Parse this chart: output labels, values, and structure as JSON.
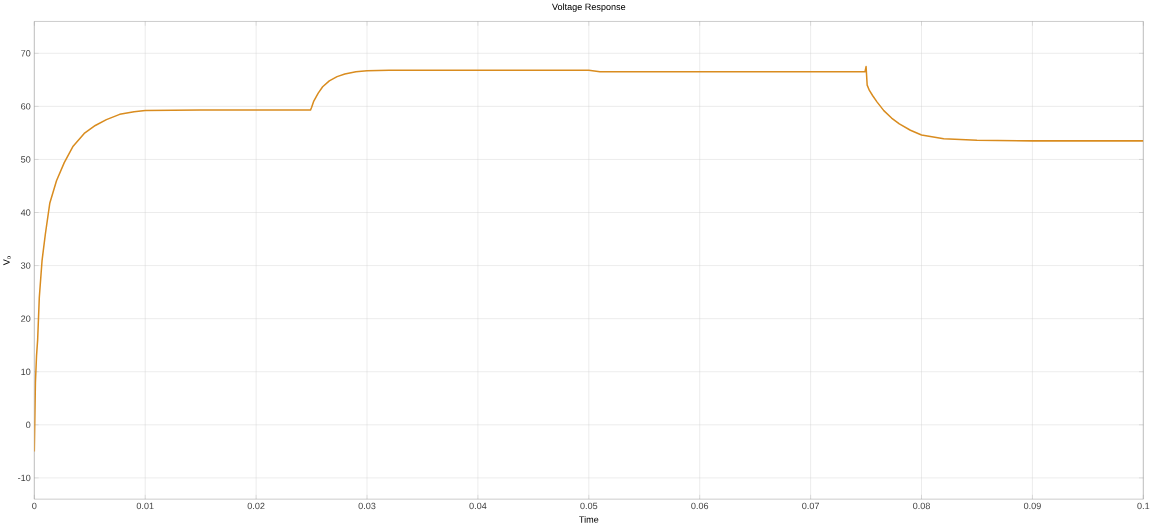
{
  "chart_data": {
    "type": "line",
    "title": "Voltage Response",
    "xlabel": "Time",
    "ylabel": "V$_{o}$",
    "x": [
      0,
      0.0001,
      0.0002,
      0.0003,
      0.00045,
      0.0007,
      0.001,
      0.0014,
      0.002,
      0.0027,
      0.0035,
      0.0045,
      0.0055,
      0.0065,
      0.0077,
      0.009,
      0.01,
      0.015,
      0.02,
      0.0249,
      0.025,
      0.0252,
      0.0256,
      0.026,
      0.0266,
      0.0273,
      0.028,
      0.029,
      0.03,
      0.032,
      0.035,
      0.04,
      0.045,
      0.05,
      0.051,
      0.06,
      0.07,
      0.0749,
      0.075,
      0.0751,
      0.0753,
      0.0756,
      0.076,
      0.0766,
      0.0773,
      0.078,
      0.079,
      0.08,
      0.082,
      0.085,
      0.09,
      0.095,
      0.1
    ],
    "series": [
      {
        "color": "#d98c1f",
        "values": [
          -5,
          8,
          13,
          16,
          24,
          31,
          36,
          41.8,
          46,
          49.4,
          52.5,
          54.9,
          56.4,
          57.5,
          58.5,
          59,
          59.2,
          59.3,
          59.3,
          59.3,
          59.8,
          61,
          62.5,
          63.7,
          64.8,
          65.6,
          66.1,
          66.5,
          66.7,
          66.8,
          66.8,
          66.8,
          66.8,
          66.8,
          66.5,
          66.5,
          66.5,
          66.5,
          67.5,
          64,
          63,
          62,
          60.8,
          59.2,
          57.8,
          56.7,
          55.5,
          54.6,
          53.9,
          53.6,
          53.5,
          53.5,
          53.5
        ]
      }
    ],
    "xlim": [
      0,
      0.1
    ],
    "ylim": [
      -14,
      76
    ],
    "xticks": [
      0,
      0.01,
      0.02,
      0.03,
      0.04,
      0.05,
      0.06,
      0.07,
      0.08,
      0.09,
      0.1
    ],
    "yticks": [
      -10,
      0,
      10,
      20,
      30,
      40,
      50,
      60,
      70
    ],
    "grid": true,
    "marker": "none",
    "line_style": "solid"
  }
}
